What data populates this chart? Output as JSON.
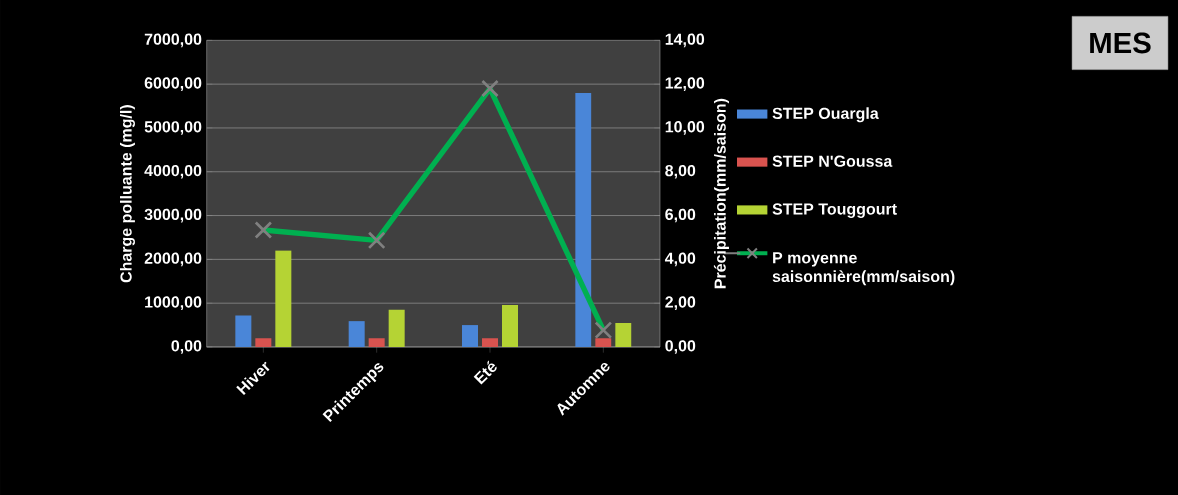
{
  "chart_data": {
    "type": "bar",
    "title": "MES",
    "ylabel": "Charge polluante (mg/l)",
    "y2label": "Précipitation(mm/saison)",
    "categories": [
      "Hiver",
      "Printemps",
      "Eté",
      "Automne"
    ],
    "series": [
      {
        "name": "STEP Ouargla",
        "color": "#4a86d8",
        "values": [
          720,
          590,
          500,
          5800
        ]
      },
      {
        "name": "STEP N'Goussa",
        "color": "#d9534f",
        "values": [
          200,
          200,
          200,
          200
        ]
      },
      {
        "name": "STEP Touggourt",
        "color": "#b5d334",
        "values": [
          2200,
          850,
          960,
          550
        ]
      },
      {
        "name": "P moyenne saisonnière(mm/saison)",
        "type": "line",
        "axis": "y2",
        "color": "#00b050",
        "marker": "cross",
        "line_style": "solid",
        "values": [
          5.34,
          4.87,
          11.8,
          0.77
        ]
      }
    ],
    "ylim": [
      0,
      7000
    ],
    "yticks": [
      {
        "value": 0,
        "label": "0,00"
      },
      {
        "value": 1000,
        "label": "1000,00"
      },
      {
        "value": 2000,
        "label": "2000,00"
      },
      {
        "value": 3000,
        "label": "3000,00"
      },
      {
        "value": 4000,
        "label": "4000,00"
      },
      {
        "value": 5000,
        "label": "5000,00"
      },
      {
        "value": 6000,
        "label": "6000,00"
      },
      {
        "value": 7000,
        "label": "7000,00"
      }
    ],
    "y2lim": [
      0,
      14
    ],
    "y2ticks": [
      {
        "value": 0,
        "label": "0,00"
      },
      {
        "value": 2,
        "label": "2,00"
      },
      {
        "value": 4,
        "label": "4,00"
      },
      {
        "value": 6,
        "label": "6,00"
      },
      {
        "value": 8,
        "label": "8,00"
      },
      {
        "value": 10,
        "label": "10,00"
      },
      {
        "value": 12,
        "label": "12,00"
      },
      {
        "value": 14,
        "label": "14,00"
      }
    ],
    "grid": "y",
    "legend": "right"
  }
}
